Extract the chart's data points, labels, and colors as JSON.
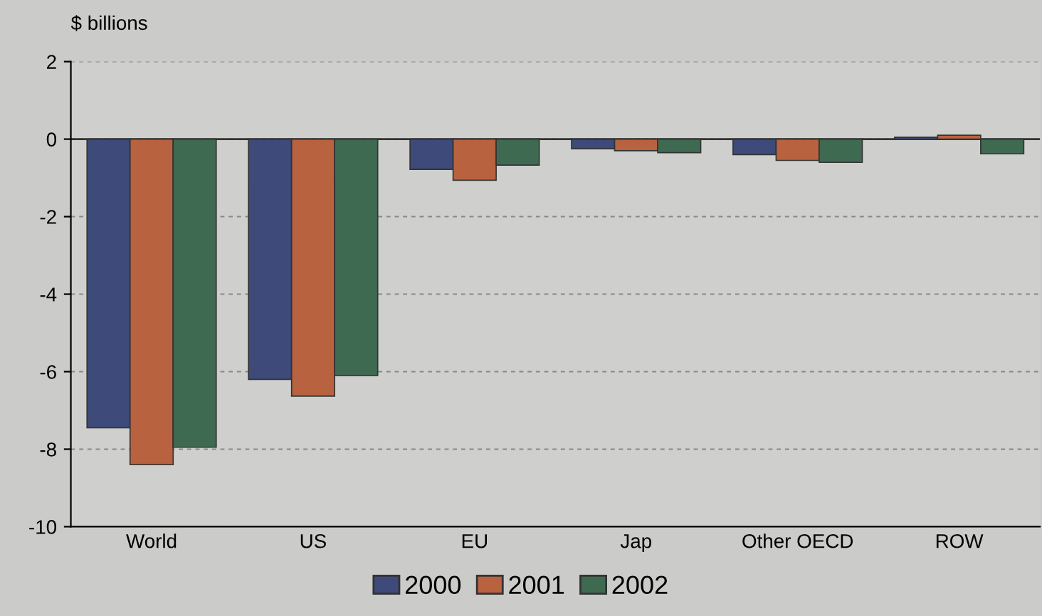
{
  "chart_data": {
    "type": "bar",
    "ylabel": "$ billions",
    "categories": [
      "World",
      "US",
      "EU",
      "Jap",
      "Other OECD",
      "ROW"
    ],
    "series": [
      {
        "name": "2000",
        "color": "#3d4a7a",
        "values": [
          -7.45,
          -6.2,
          -0.78,
          -0.25,
          -0.4,
          0.05
        ]
      },
      {
        "name": "2001",
        "color": "#b8623f",
        "values": [
          -8.4,
          -6.63,
          -1.06,
          -0.3,
          -0.55,
          0.1
        ]
      },
      {
        "name": "2002",
        "color": "#3f6a52",
        "values": [
          -7.95,
          -6.1,
          -0.67,
          -0.35,
          -0.6,
          -0.38
        ]
      }
    ],
    "ylim": [
      -10,
      2
    ],
    "yticks": [
      -10,
      -8,
      -6,
      -4,
      -2,
      0,
      2
    ],
    "grid": "y",
    "legend": "bottom"
  }
}
